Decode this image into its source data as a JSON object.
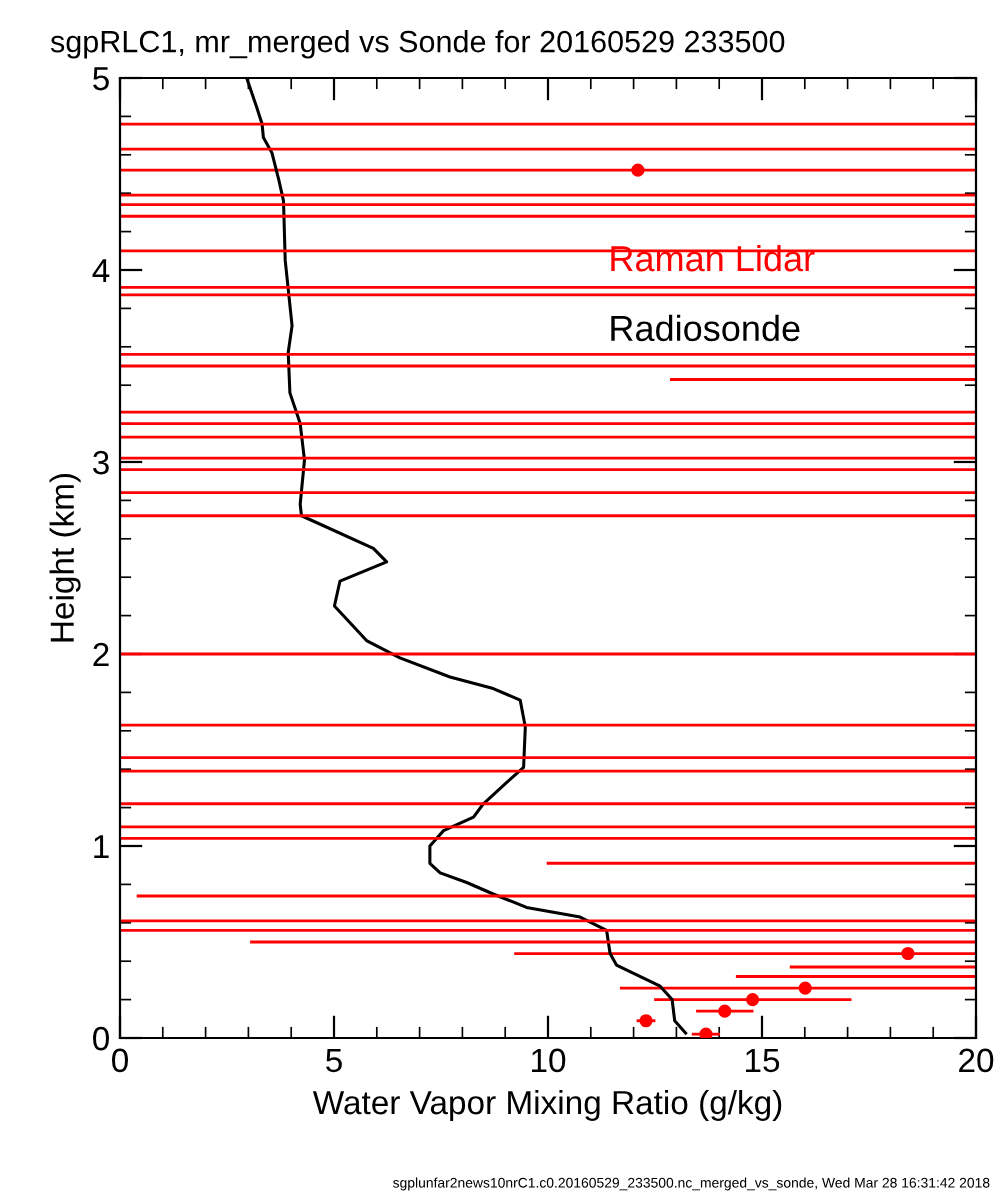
{
  "chart_data": {
    "type": "line",
    "title": "sgpRLC1, mr_merged vs Sonde for 20160529 233500",
    "xlabel": "Water Vapor Mixing Ratio (g/kg)",
    "ylabel": "Height (km)",
    "xlim": [
      0,
      20
    ],
    "xticks": [
      0,
      5,
      10,
      15,
      20
    ],
    "ylim": [
      0,
      5
    ],
    "yticks": [
      0,
      1,
      2,
      3,
      4,
      5
    ],
    "legend": "top right",
    "annotations": [
      "sgplunfar2news10nrC1.c0.20160529_233500.nc_merged_vs_sonde, Wed Mar 28 16:31:42 2018"
    ],
    "ref_lines": [
      {
        "axis": "y",
        "value": 4.76,
        "color": "#ff0000"
      },
      {
        "axis": "y",
        "value": 4.63,
        "color": "#ff0000"
      },
      {
        "axis": "y",
        "value": 4.39,
        "color": "#ff0000"
      },
      {
        "axis": "y",
        "value": 4.34,
        "color": "#ff0000"
      },
      {
        "axis": "y",
        "value": 4.28,
        "color": "#ff0000"
      },
      {
        "axis": "y",
        "value": 4.1,
        "color": "#ff0000"
      },
      {
        "axis": "y",
        "value": 3.91,
        "color": "#ff0000"
      },
      {
        "axis": "y",
        "value": 3.87,
        "color": "#ff0000"
      },
      {
        "axis": "y",
        "value": 3.56,
        "color": "#ff0000"
      },
      {
        "axis": "y",
        "value": 3.5,
        "color": "#ff0000"
      },
      {
        "axis": "y",
        "value": 3.26,
        "color": "#ff0000"
      },
      {
        "axis": "y",
        "value": 3.2,
        "color": "#ff0000"
      },
      {
        "axis": "y",
        "value": 3.13,
        "color": "#ff0000"
      },
      {
        "axis": "y",
        "value": 3.02,
        "color": "#ff0000"
      },
      {
        "axis": "y",
        "value": 2.96,
        "color": "#ff0000"
      },
      {
        "axis": "y",
        "value": 2.84,
        "color": "#ff0000"
      },
      {
        "axis": "y",
        "value": 2.72,
        "color": "#ff0000"
      },
      {
        "axis": "y",
        "value": 2.0,
        "color": "#ff0000"
      },
      {
        "axis": "y",
        "value": 1.63,
        "color": "#ff0000"
      },
      {
        "axis": "y",
        "value": 1.46,
        "color": "#ff0000"
      },
      {
        "axis": "y",
        "value": 1.39,
        "color": "#ff0000"
      },
      {
        "axis": "y",
        "value": 1.22,
        "color": "#ff0000"
      },
      {
        "axis": "y",
        "value": 1.1,
        "color": "#ff0000"
      },
      {
        "axis": "y",
        "value": 1.04,
        "color": "#ff0000"
      },
      {
        "axis": "y",
        "value": 0.61,
        "color": "#ff0000"
      },
      {
        "axis": "y",
        "value": 0.56,
        "color": "#ff0000"
      }
    ],
    "series": [
      {
        "name": "Raman Lidar",
        "type": "scatter",
        "marker": "circle",
        "color": "#ff0000",
        "x": [
          12.1,
          18.41,
          16.01,
          14.78,
          14.13,
          12.29,
          13.69
        ],
        "values": [
          4.52,
          0.44,
          0.26,
          0.2,
          0.14,
          0.09,
          0.02
        ],
        "xerrors": [
          [
            0,
            20
          ],
          [
            9.21,
            20
          ],
          [
            11.68,
            20
          ],
          [
            12.48,
            17.09
          ],
          [
            13.46,
            14.8
          ],
          [
            12.07,
            12.51
          ],
          [
            13.36,
            14.02
          ]
        ]
      },
      {
        "name": "Radiosonde",
        "color": "#000000",
        "x": [
          2.96,
          3.19,
          3.32,
          3.35,
          3.55,
          3.71,
          3.82,
          3.86,
          4.02,
          3.93,
          3.97,
          4.21,
          4.31,
          4.21,
          4.24,
          5.92,
          6.23,
          5.14,
          5.01,
          5.76,
          6.54,
          7.71,
          8.72,
          9.35,
          9.47,
          9.43,
          9.03,
          8.49,
          8.26,
          7.56,
          7.24,
          7.24,
          7.48,
          8.1,
          8.72,
          9.5,
          10.75,
          11.37,
          11.45,
          11.6,
          12.62,
          12.9,
          12.96,
          13.24
        ],
        "values": [
          5.0,
          4.85,
          4.76,
          4.69,
          4.61,
          4.47,
          4.36,
          4.05,
          3.71,
          3.57,
          3.36,
          3.2,
          3.01,
          2.78,
          2.72,
          2.55,
          2.48,
          2.38,
          2.25,
          2.07,
          1.98,
          1.88,
          1.82,
          1.76,
          1.62,
          1.41,
          1.33,
          1.22,
          1.15,
          1.08,
          1.0,
          0.91,
          0.86,
          0.81,
          0.75,
          0.68,
          0.63,
          0.56,
          0.44,
          0.38,
          0.27,
          0.2,
          0.09,
          0.02
        ]
      },
      {
        "color": "#ff0000",
        "x": [
          12.85,
          20
        ],
        "values": [
          3.43,
          3.43
        ]
      },
      {
        "color": "#ff0000",
        "x": [
          9.97,
          20
        ],
        "values": [
          0.91,
          0.91
        ]
      },
      {
        "color": "#ff0000",
        "x": [
          0.39,
          20
        ],
        "values": [
          0.74,
          0.74
        ]
      },
      {
        "color": "#ff0000",
        "x": [
          3.04,
          20
        ],
        "values": [
          0.5,
          0.5
        ]
      },
      {
        "color": "#ff0000",
        "x": [
          15.65,
          20
        ],
        "values": [
          0.37,
          0.37
        ]
      },
      {
        "color": "#ff0000",
        "x": [
          14.39,
          20
        ],
        "values": [
          0.32,
          0.32
        ]
      }
    ]
  }
}
